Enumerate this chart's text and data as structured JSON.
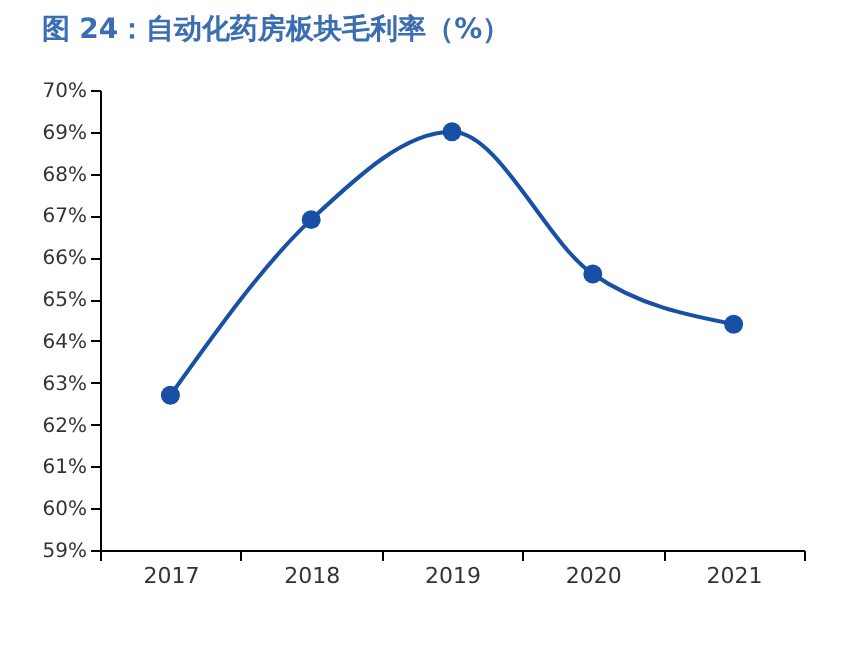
{
  "chart_data": {
    "type": "line",
    "title": "图 24：自动化药房板块毛利率（%）",
    "categories": [
      "2017",
      "2018",
      "2019",
      "2020",
      "2021"
    ],
    "series": [
      {
        "color": "#1750a5",
        "values": [
          62.7,
          66.9,
          69.0,
          65.6,
          64.4
        ]
      }
    ],
    "ylim": [
      59,
      70
    ],
    "yticks": [
      {
        "value": 59,
        "label": "59%"
      },
      {
        "value": 60,
        "label": "60%"
      },
      {
        "value": 61,
        "label": "61%"
      },
      {
        "value": 62,
        "label": "62%"
      },
      {
        "value": 63,
        "label": "63%"
      },
      {
        "value": 64,
        "label": "64%"
      },
      {
        "value": 65,
        "label": "65%"
      },
      {
        "value": 66,
        "label": "66%"
      },
      {
        "value": 67,
        "label": "67%"
      },
      {
        "value": 68,
        "label": "68%"
      },
      {
        "value": 69,
        "label": "69%"
      },
      {
        "value": 70,
        "label": "70%"
      }
    ],
    "grid": false,
    "legend": false,
    "marker": "circle",
    "line_style": "solid"
  }
}
